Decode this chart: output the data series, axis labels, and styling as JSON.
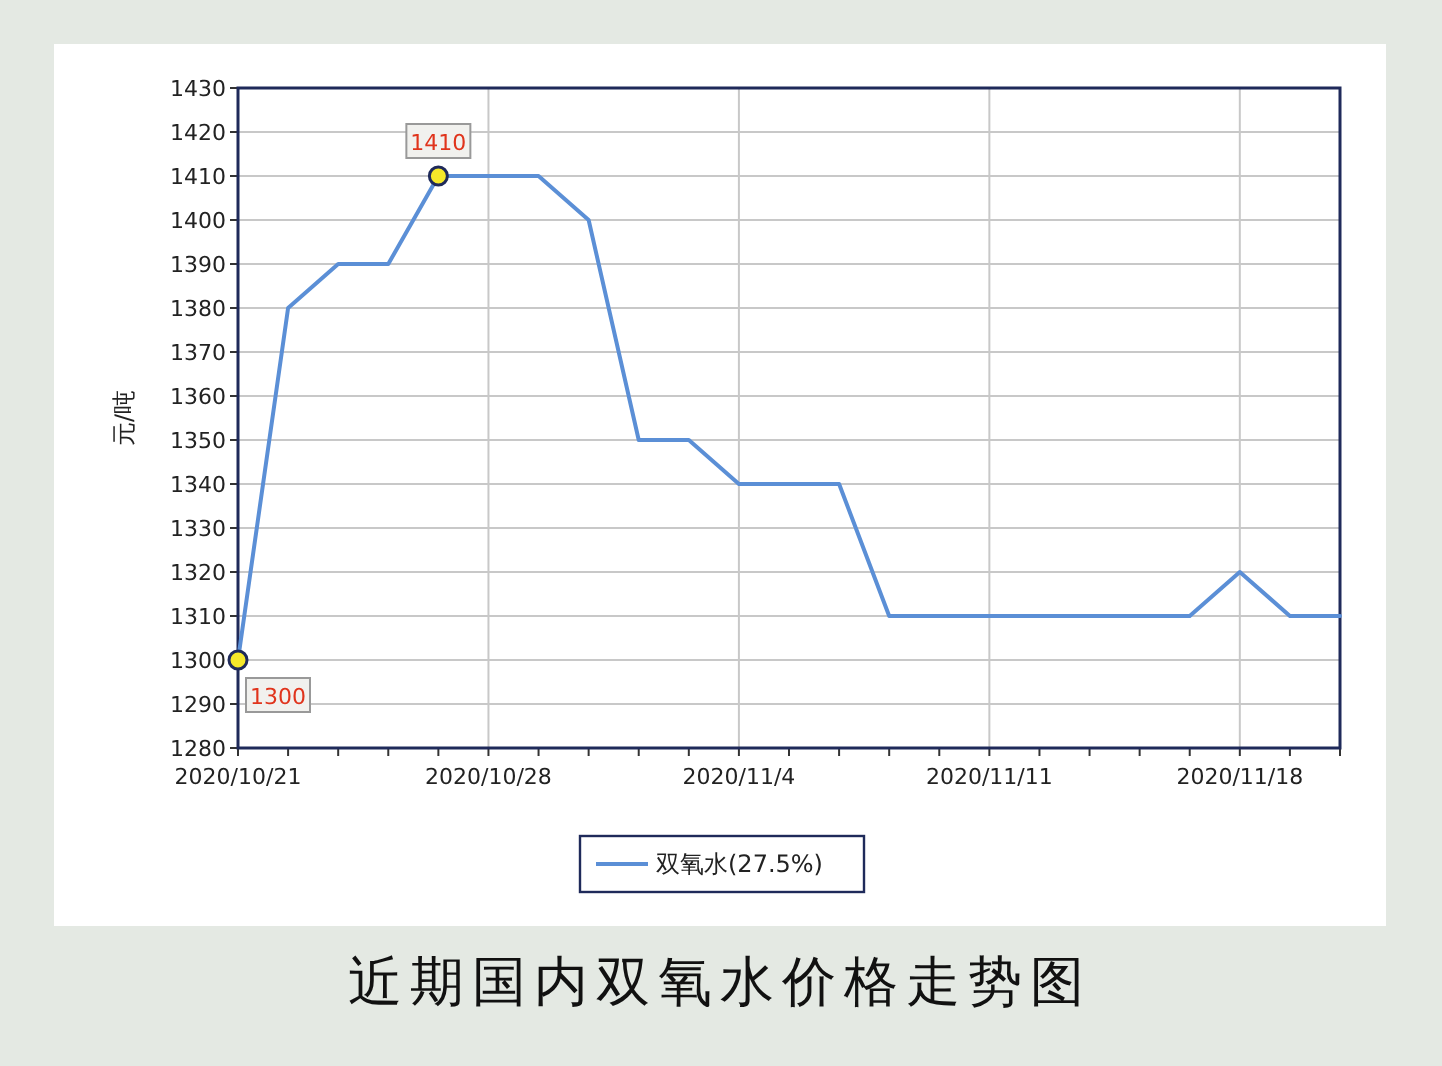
{
  "chart_data": {
    "type": "line",
    "title": "近期国内双氧水价格走势图",
    "ylabel": "元/吨",
    "categories": [
      "2020/10/21",
      null,
      null,
      null,
      null,
      "2020/10/28",
      null,
      null,
      null,
      null,
      "2020/11/4",
      null,
      null,
      null,
      null,
      "2020/11/11",
      null,
      null,
      null,
      null,
      "2020/11/18",
      null,
      null
    ],
    "series": [
      {
        "name": "双氧水(27.5%)",
        "color": "#5b8fd6",
        "values": [
          1300,
          1380,
          1390,
          1390,
          1410,
          1410,
          1410,
          1400,
          1350,
          1350,
          1340,
          1340,
          1340,
          1310,
          1310,
          1310,
          1310,
          1310,
          1310,
          1310,
          1320,
          1310,
          1310
        ],
        "value_labels": [
          "1300",
          null,
          null,
          null,
          "1410",
          null,
          null,
          null,
          null,
          null,
          null,
          null,
          null,
          null,
          null,
          null,
          null,
          null,
          null,
          null,
          null,
          null,
          null
        ]
      }
    ],
    "ylim": [
      1280,
      1430
    ],
    "yticks": [
      1280,
      1290,
      1300,
      1310,
      1320,
      1330,
      1340,
      1350,
      1360,
      1370,
      1380,
      1390,
      1400,
      1410,
      1420,
      1430
    ],
    "grid": true,
    "legend": "bottom",
    "marker": "none",
    "line_style": "solid"
  }
}
